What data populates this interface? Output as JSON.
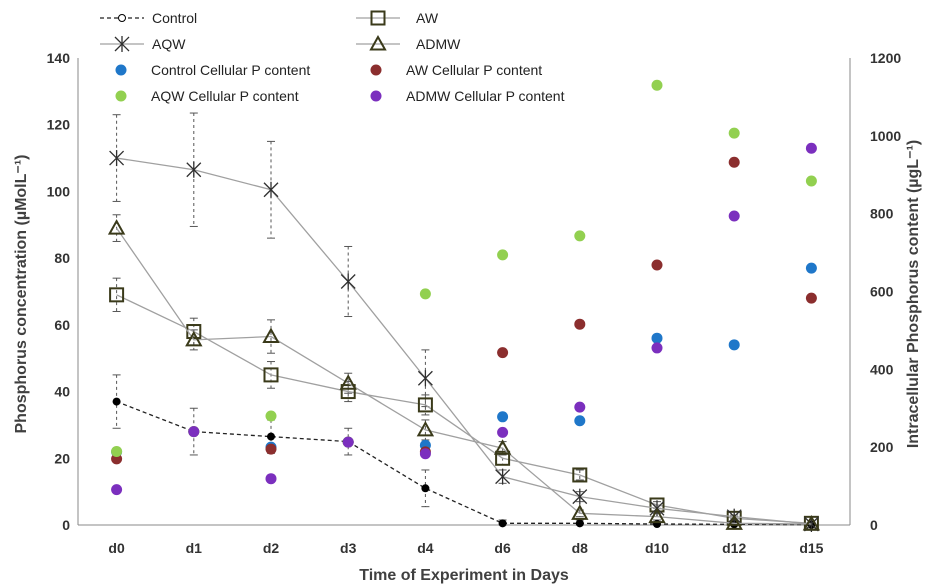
{
  "chart_data": {
    "type": "line",
    "xlabel": "Time of Experiment in Days",
    "ylabel_left": "Phosphorus concentration (µMolL⁻¹)",
    "ylabel_right": "Intracellular Phosphorus content (µgL⁻¹)",
    "categories": [
      "d0",
      "d1",
      "d2",
      "d3",
      "d4",
      "d6",
      "d8",
      "d10",
      "d12",
      "d15"
    ],
    "ylim_left": [
      0,
      140
    ],
    "yticks_left": [
      0,
      20,
      40,
      60,
      80,
      100,
      120,
      140
    ],
    "ylim_right": [
      0,
      1200
    ],
    "yticks_right": [
      0,
      200,
      400,
      600,
      800,
      1000,
      1200
    ],
    "grid": false,
    "legend_position": "top",
    "line_series": [
      {
        "name": "Control",
        "marker": "circle",
        "dashed": true,
        "color": "#000000",
        "values": [
          37,
          28,
          26.5,
          25,
          11,
          0.5,
          0.5,
          0.3,
          0.2,
          0.1
        ],
        "errors": [
          8,
          7,
          5,
          4,
          5.5,
          1,
          1,
          0.5,
          0.5,
          0.3
        ]
      },
      {
        "name": "AW",
        "marker": "square",
        "dashed": false,
        "color": "#a0a0a0",
        "values": [
          69,
          58,
          45,
          40,
          36,
          20,
          15,
          6,
          2,
          0.5
        ],
        "errors": [
          5,
          4,
          4,
          3,
          3,
          2,
          1.5,
          1,
          0.5,
          0.3
        ]
      },
      {
        "name": "AQW",
        "marker": "star",
        "dashed": false,
        "color": "#a0a0a0",
        "values": [
          110,
          106.5,
          100.5,
          73,
          44,
          14.5,
          8.5,
          5,
          2.5,
          0.3
        ],
        "errors": [
          13,
          17,
          14.5,
          10.5,
          8.5,
          2,
          1.5,
          1,
          0.5,
          0.3
        ]
      },
      {
        "name": "ADMW",
        "marker": "triangle",
        "dashed": false,
        "color": "#a0a0a0",
        "values": [
          89,
          55.5,
          56.5,
          42.5,
          28.5,
          23,
          3.5,
          2.5,
          0.5,
          0.3
        ],
        "errors": [
          4,
          3,
          5,
          3,
          3,
          2,
          1,
          1,
          0.5,
          0.3
        ]
      }
    ],
    "scatter_series": [
      {
        "name": "Control Cellular P content",
        "color": "#1f77c9",
        "values": [
          188,
          240,
          200,
          213,
          205,
          278,
          268,
          480,
          463,
          660
        ]
      },
      {
        "name": "AW Cellular P content",
        "color": "#8b2e2e",
        "values": [
          170,
          240,
          195,
          213,
          188,
          443,
          516,
          668,
          932,
          583
        ]
      },
      {
        "name": "AQW Cellular P content",
        "color": "#92d050",
        "values": [
          189,
          240,
          280,
          213,
          594,
          694,
          743,
          1130,
          1007,
          884
        ]
      },
      {
        "name": "ADMW Cellular P content",
        "color": "#7b2fbe",
        "values": [
          91,
          240,
          119,
          213,
          183,
          238,
          303,
          455,
          794,
          968
        ]
      }
    ]
  }
}
